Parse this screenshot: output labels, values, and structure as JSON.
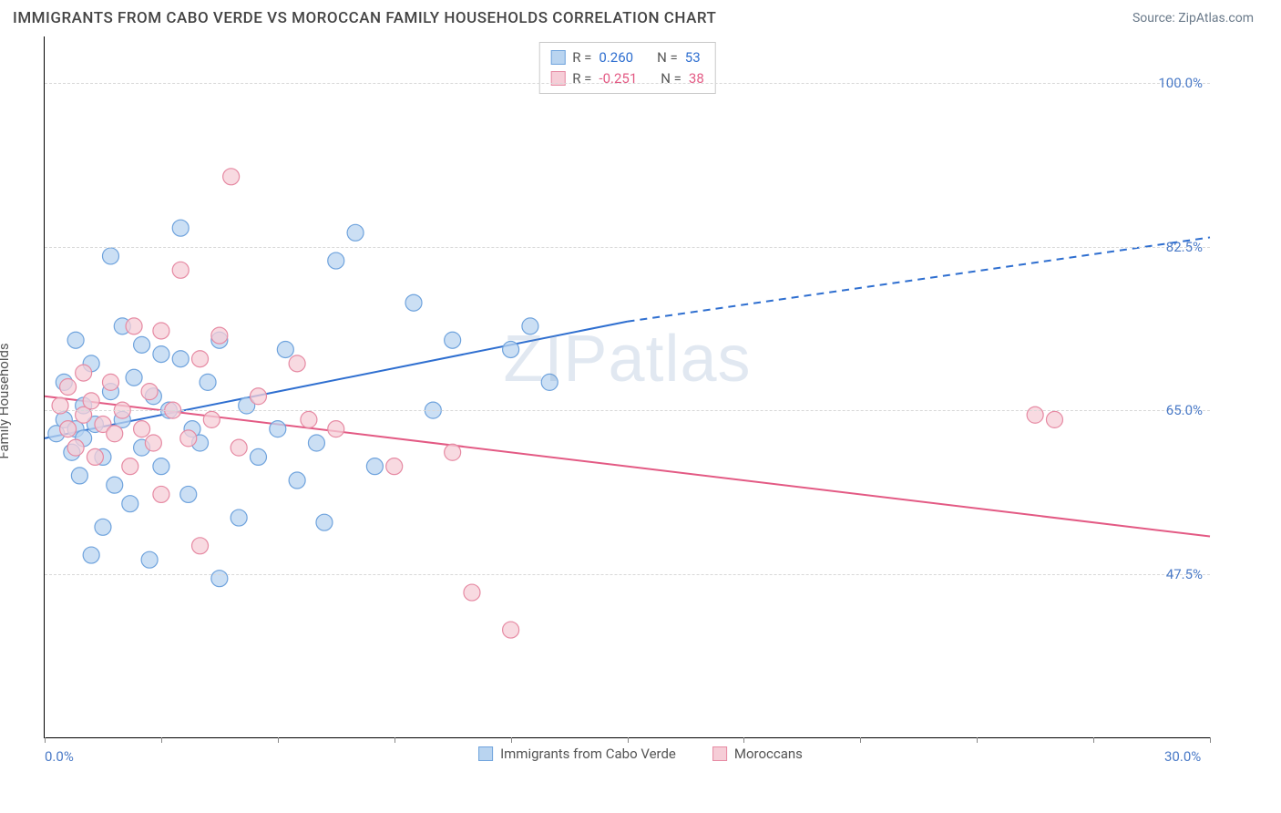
{
  "header": {
    "title": "IMMIGRANTS FROM CABO VERDE VS MOROCCAN FAMILY HOUSEHOLDS CORRELATION CHART",
    "source": "Source: ZipAtlas.com"
  },
  "chart": {
    "type": "scatter",
    "y_axis_label": "Family Households",
    "watermark": "ZIPatlas",
    "background_color": "#ffffff",
    "grid_color": "#d8d8d8",
    "axis_color": "#000000",
    "tick_label_color": "#4a7ac7",
    "label_fontsize": 15,
    "title_fontsize": 17,
    "x_axis": {
      "min": 0.0,
      "max": 30.0,
      "ticks": [
        0.0,
        30.0
      ],
      "tick_labels": [
        "0.0%",
        "30.0%"
      ],
      "minor_tick_step": 3.0
    },
    "y_axis": {
      "min": 30.0,
      "max": 105.0,
      "gridlines": [
        47.5,
        65.0,
        82.5,
        100.0
      ],
      "gridline_labels": [
        "47.5%",
        "65.0%",
        "82.5%",
        "100.0%"
      ]
    },
    "series": [
      {
        "name": "Immigrants from Cabo Verde",
        "color_fill": "#b9d4f0",
        "color_stroke": "#6fa3dd",
        "line_color": "#2f6fd0",
        "marker_radius": 9,
        "marker_opacity": 0.75,
        "line_width": 2,
        "stats": {
          "R": "0.260",
          "N": "53"
        },
        "trend": {
          "start": [
            0.0,
            62.0
          ],
          "solid_end": [
            15.0,
            74.5
          ],
          "dash_end": [
            30.0,
            83.5
          ]
        },
        "points": [
          [
            0.3,
            62.5
          ],
          [
            0.5,
            64.0
          ],
          [
            0.5,
            68.0
          ],
          [
            0.7,
            60.5
          ],
          [
            0.8,
            63.0
          ],
          [
            0.8,
            72.5
          ],
          [
            0.9,
            58.0
          ],
          [
            1.0,
            65.5
          ],
          [
            1.0,
            62.0
          ],
          [
            1.2,
            49.5
          ],
          [
            1.2,
            70.0
          ],
          [
            1.3,
            63.5
          ],
          [
            1.5,
            52.5
          ],
          [
            1.5,
            60.0
          ],
          [
            1.7,
            81.5
          ],
          [
            1.7,
            67.0
          ],
          [
            1.8,
            57.0
          ],
          [
            2.0,
            74.0
          ],
          [
            2.0,
            64.0
          ],
          [
            2.2,
            55.0
          ],
          [
            2.3,
            68.5
          ],
          [
            2.5,
            72.0
          ],
          [
            2.5,
            61.0
          ],
          [
            2.7,
            49.0
          ],
          [
            2.8,
            66.5
          ],
          [
            3.0,
            71.0
          ],
          [
            3.0,
            59.0
          ],
          [
            3.2,
            65.0
          ],
          [
            3.5,
            84.5
          ],
          [
            3.5,
            70.5
          ],
          [
            3.7,
            56.0
          ],
          [
            3.8,
            63.0
          ],
          [
            4.0,
            61.5
          ],
          [
            4.2,
            68.0
          ],
          [
            4.5,
            47.0
          ],
          [
            4.5,
            72.5
          ],
          [
            5.0,
            53.5
          ],
          [
            5.2,
            65.5
          ],
          [
            5.5,
            60.0
          ],
          [
            6.0,
            63.0
          ],
          [
            6.2,
            71.5
          ],
          [
            6.5,
            57.5
          ],
          [
            7.0,
            61.5
          ],
          [
            7.2,
            53.0
          ],
          [
            7.5,
            81.0
          ],
          [
            8.0,
            84.0
          ],
          [
            8.5,
            59.0
          ],
          [
            9.5,
            76.5
          ],
          [
            10.0,
            65.0
          ],
          [
            10.5,
            72.5
          ],
          [
            12.0,
            71.5
          ],
          [
            12.5,
            74.0
          ],
          [
            13.0,
            68.0
          ]
        ]
      },
      {
        "name": "Moroccans",
        "color_fill": "#f6cdd7",
        "color_stroke": "#e68aa3",
        "line_color": "#e35a84",
        "marker_radius": 9,
        "marker_opacity": 0.75,
        "line_width": 2,
        "stats": {
          "R": "-0.251",
          "N": "38"
        },
        "trend": {
          "start": [
            0.0,
            66.5
          ],
          "solid_end": [
            30.0,
            51.5
          ],
          "dash_end": null
        },
        "points": [
          [
            0.4,
            65.5
          ],
          [
            0.6,
            63.0
          ],
          [
            0.6,
            67.5
          ],
          [
            0.8,
            61.0
          ],
          [
            1.0,
            69.0
          ],
          [
            1.0,
            64.5
          ],
          [
            1.2,
            66.0
          ],
          [
            1.3,
            60.0
          ],
          [
            1.5,
            63.5
          ],
          [
            1.7,
            68.0
          ],
          [
            1.8,
            62.5
          ],
          [
            2.0,
            65.0
          ],
          [
            2.2,
            59.0
          ],
          [
            2.3,
            74.0
          ],
          [
            2.5,
            63.0
          ],
          [
            2.7,
            67.0
          ],
          [
            2.8,
            61.5
          ],
          [
            3.0,
            73.5
          ],
          [
            3.0,
            56.0
          ],
          [
            3.3,
            65.0
          ],
          [
            3.5,
            80.0
          ],
          [
            3.7,
            62.0
          ],
          [
            4.0,
            50.5
          ],
          [
            4.0,
            70.5
          ],
          [
            4.3,
            64.0
          ],
          [
            4.5,
            73.0
          ],
          [
            4.8,
            90.0
          ],
          [
            5.0,
            61.0
          ],
          [
            5.5,
            66.5
          ],
          [
            6.5,
            70.0
          ],
          [
            6.8,
            64.0
          ],
          [
            7.5,
            63.0
          ],
          [
            9.0,
            59.0
          ],
          [
            10.5,
            60.5
          ],
          [
            11.0,
            45.5
          ],
          [
            12.0,
            41.5
          ],
          [
            25.5,
            64.5
          ],
          [
            26.0,
            64.0
          ]
        ]
      }
    ],
    "bottom_legend": [
      {
        "label": "Immigrants from Cabo Verde",
        "swatch_fill": "#b9d4f0",
        "swatch_stroke": "#6fa3dd"
      },
      {
        "label": "Moroccans",
        "swatch_fill": "#f6cdd7",
        "swatch_stroke": "#e68aa3"
      }
    ]
  }
}
